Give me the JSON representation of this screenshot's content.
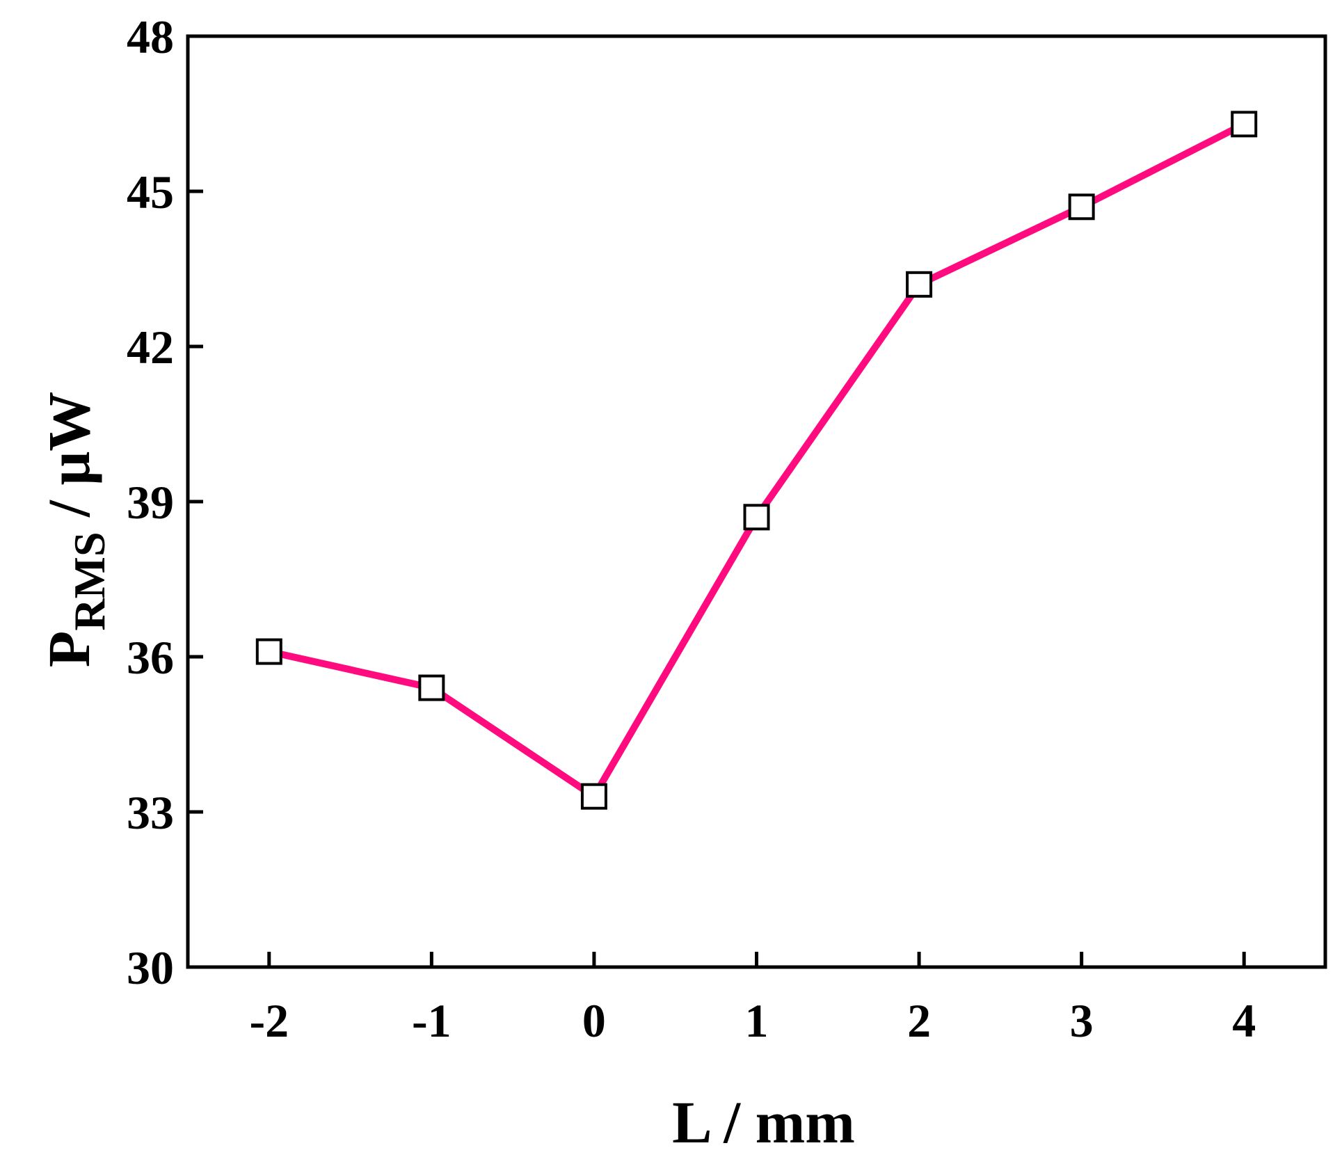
{
  "chart_data": {
    "type": "line",
    "xlabel": "L / mm",
    "ylabel": {
      "main": "P",
      "sub": "RMS",
      "unit": " /  μW"
    },
    "xlim": [
      -2.5,
      4.5
    ],
    "ylim": [
      30,
      48
    ],
    "xticks": [
      -2,
      -1,
      0,
      1,
      2,
      3,
      4
    ],
    "yticks": [
      30,
      33,
      36,
      39,
      42,
      45,
      48
    ],
    "grid": false,
    "series": [
      {
        "color": "#ff0a7f",
        "marker": "open-square",
        "x": [
          -2,
          -1,
          0,
          1,
          2,
          3,
          4
        ],
        "y": [
          36.1,
          35.4,
          33.3,
          38.7,
          43.2,
          44.7,
          46.3
        ]
      }
    ]
  }
}
